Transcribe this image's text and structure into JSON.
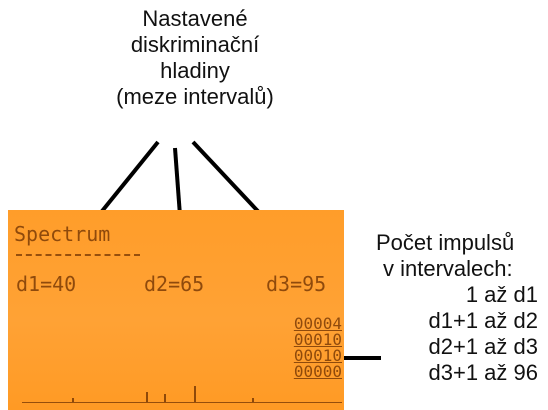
{
  "callout_top": {
    "lines": [
      "Nastavené",
      "diskriminační",
      "hladiny",
      "(meze intervalů)"
    ]
  },
  "callout_right": {
    "title_line1": "Počet impulsů",
    "title_line2": "v intervalech:",
    "rows": [
      "1 až d1",
      "d1+1 až d2",
      "d2+1 až d3",
      "d3+1 až 96"
    ]
  },
  "lcd": {
    "title": "Spectrum",
    "d1": "d1=40",
    "d2": "d2=65",
    "d3": "d3=95",
    "counts": [
      "00004",
      "00010",
      "00010",
      "00000"
    ],
    "background_color": "#ffa235",
    "text_color": "#6a2e00"
  }
}
